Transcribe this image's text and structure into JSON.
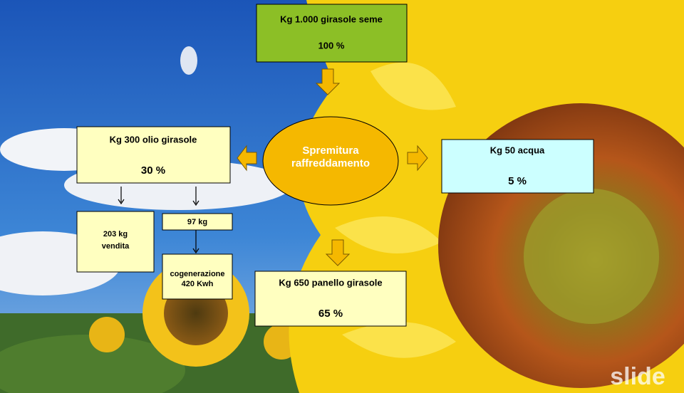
{
  "nodes": [
    {
      "lines": [
        "Kg 1.000 girasole seme",
        "100 %"
      ]
    },
    {
      "lines": [
        "Spremitura",
        "raffreddamento"
      ]
    },
    {
      "lines": [
        "Kg 300 olio girasole",
        "30 %"
      ]
    },
    {
      "lines": [
        "Kg 50 acqua",
        "5 %"
      ]
    },
    {
      "lines": [
        "203 kg",
        "vendita"
      ]
    },
    {
      "lines": [
        "97 kg"
      ]
    },
    {
      "lines": [
        "cogenerazione",
        "420 Kwh"
      ]
    },
    {
      "lines": [
        "Kg 650 panello girasole",
        "65 %"
      ]
    }
  ],
  "watermark": "slide"
}
